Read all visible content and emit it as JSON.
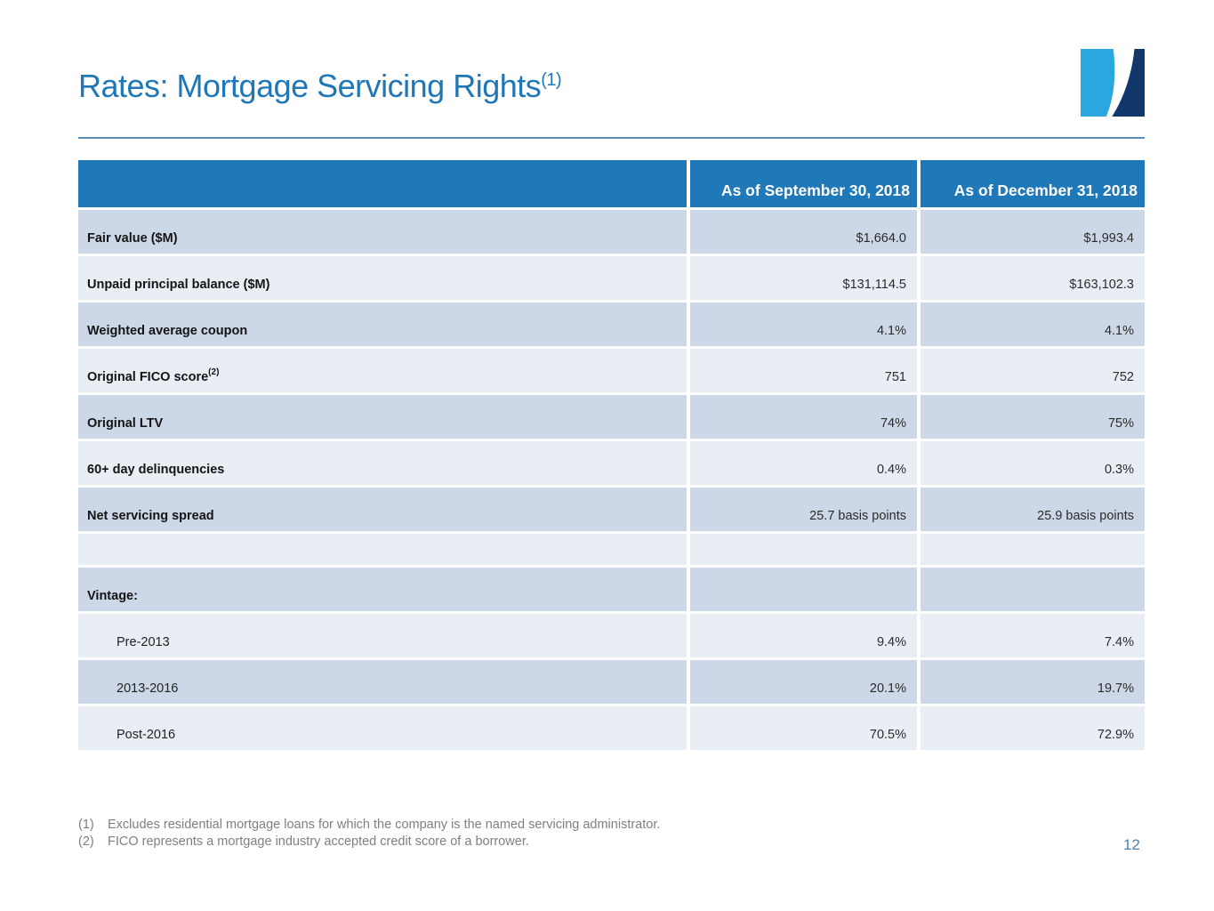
{
  "slide": {
    "title": "Rates: Mortgage Servicing Rights",
    "title_sup": "(1)",
    "page_number": "12"
  },
  "logo": {
    "icon": "swoosh-square-logo-icon"
  },
  "table": {
    "col_headers": [
      "As of September 30, 2018",
      "As of December 31, 2018"
    ],
    "rows": [
      {
        "label": "Fair value ($M)",
        "bold": true,
        "sep": "$1,664.0",
        "dec": "$1,993.4"
      },
      {
        "label": "Unpaid principal balance ($M)",
        "bold": true,
        "sep": "$131,114.5",
        "dec": "$163,102.3"
      },
      {
        "label": "Weighted average coupon",
        "bold": true,
        "sep": "4.1%",
        "dec": "4.1%"
      },
      {
        "label": "Original FICO score",
        "label_sup": "(2)",
        "bold": true,
        "sep": "751",
        "dec": "752"
      },
      {
        "label": "Original LTV",
        "bold": true,
        "sep": "74%",
        "dec": "75%"
      },
      {
        "label": "60+ day delinquencies",
        "bold": true,
        "sep": "0.4%",
        "dec": "0.3%"
      },
      {
        "label": "Net servicing spread",
        "bold": true,
        "sep": "25.7 basis points",
        "dec": "25.9 basis points"
      },
      {
        "empty": true
      },
      {
        "label": "Vintage:",
        "bold": true,
        "sep": "",
        "dec": ""
      },
      {
        "label": "Pre-2013",
        "bold": false,
        "sep": "9.4%",
        "dec": "7.4%"
      },
      {
        "label": "2013-2016",
        "bold": false,
        "sep": "20.1%",
        "dec": "19.7%"
      },
      {
        "label": "Post-2016",
        "bold": false,
        "sep": "70.5%",
        "dec": "72.9%"
      }
    ]
  },
  "footnotes": [
    {
      "num": "(1)",
      "text": "Excludes residential mortgage loans for which the company is the named servicing administrator."
    },
    {
      "num": "(2)",
      "text": "FICO represents a mortgage industry accepted credit score of a borrower."
    }
  ],
  "colors": {
    "title_color": "#2077B6",
    "rule_color": "#5B8DB8",
    "header_bg": "#1F78B8",
    "row_dark": "#CCD8E7",
    "row_light": "#E9EDF4",
    "footnote_color": "#7F7F7F",
    "page_num_color": "#4E81AE",
    "logo_light": "#2AA7DF",
    "logo_dark": "#12386B"
  }
}
